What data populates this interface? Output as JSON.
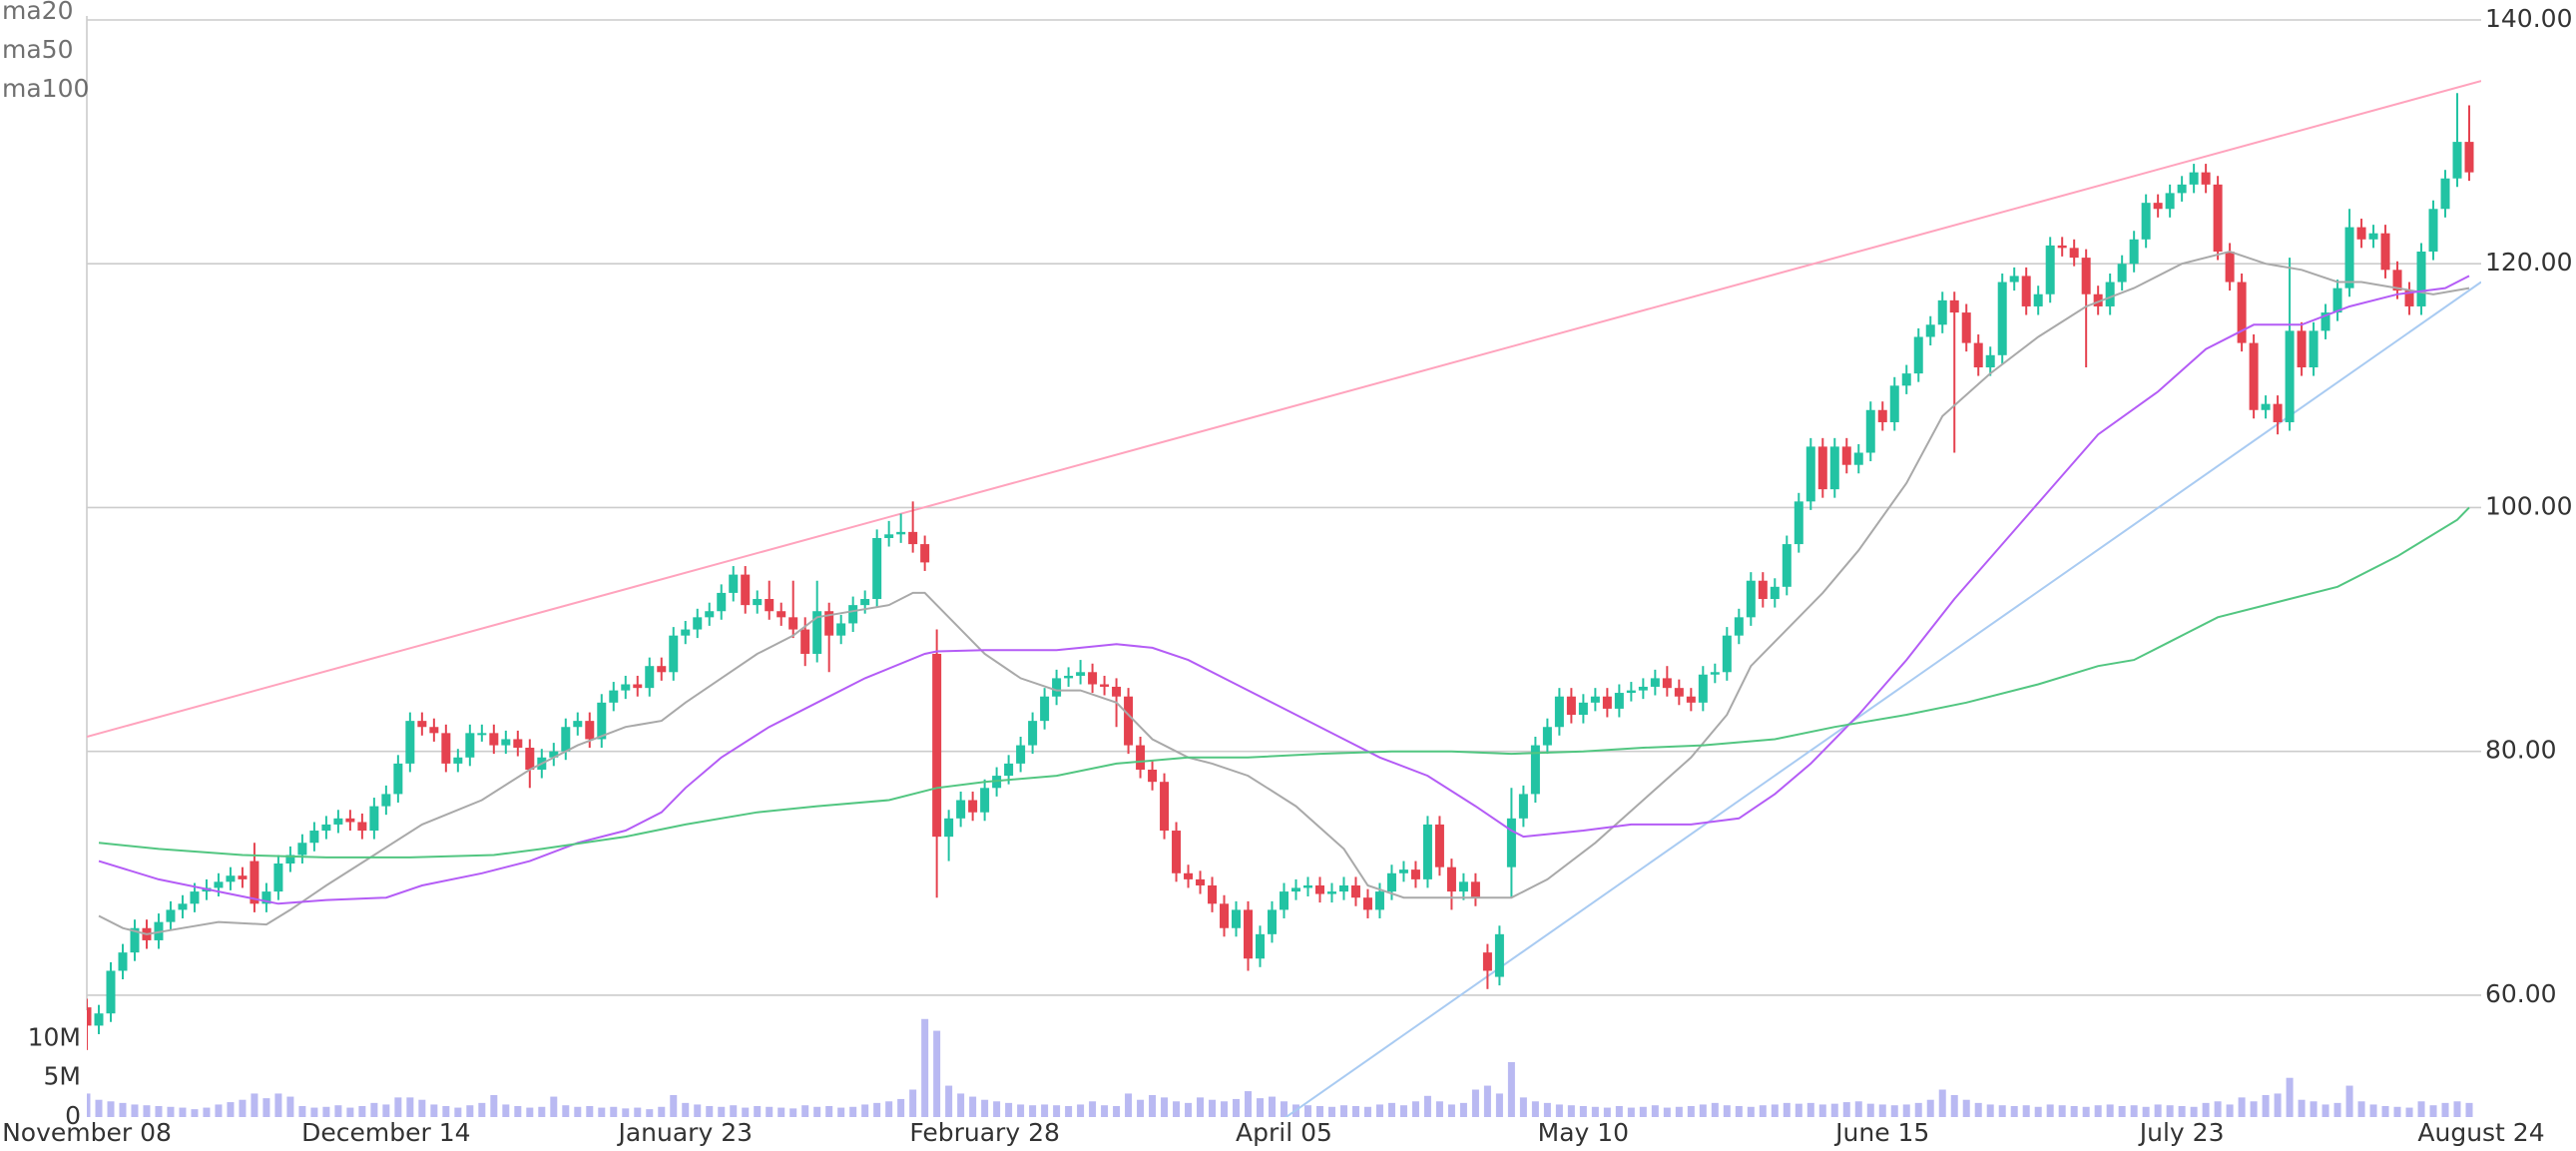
{
  "chart_data": {
    "type": "candlestick",
    "xlim": [
      0,
      200
    ],
    "xticks": [
      {
        "value": 0,
        "label": "November 08"
      },
      {
        "value": 25,
        "label": "December 14"
      },
      {
        "value": 50,
        "label": "January 23"
      },
      {
        "value": 75,
        "label": "February 28"
      },
      {
        "value": 100,
        "label": "April 05"
      },
      {
        "value": 125,
        "label": "May 10"
      },
      {
        "value": 150,
        "label": "June 15"
      },
      {
        "value": 175,
        "label": "July 23"
      },
      {
        "value": 200,
        "label": "August 24"
      }
    ],
    "ylim": [
      50,
      140
    ],
    "yticks": [
      {
        "value": 60,
        "label": "60.00"
      },
      {
        "value": 80,
        "label": "80.00"
      },
      {
        "value": 100,
        "label": "100.00"
      },
      {
        "value": 120,
        "label": "120.00"
      },
      {
        "value": 140,
        "label": "140.00"
      }
    ],
    "grid": true,
    "up_color": "#22c3a3",
    "down_color": "#e5424f",
    "open": [
      59,
      57.5,
      58.5,
      62,
      63.5,
      65.5,
      64.5,
      66,
      67,
      67.5,
      68.5,
      68.8,
      69.3,
      69.8,
      71,
      67.5,
      68.5,
      70.8,
      71.5,
      72.5,
      73.5,
      74,
      74.5,
      74.2,
      73.5,
      75.5,
      76.5,
      79,
      82.5,
      82,
      81.5,
      79,
      79.5,
      81.5,
      81.5,
      80.5,
      81,
      80.3,
      78.5,
      79.5,
      80,
      82,
      82.5,
      81,
      84,
      85,
      85.5,
      85.2,
      87,
      86.5,
      89.5,
      90,
      91,
      91.5,
      93,
      94.5,
      92,
      92.5,
      91.5,
      91,
      90,
      88,
      91.5,
      89.5,
      90.5,
      92,
      92.5,
      97.5,
      97.8,
      98,
      97,
      88,
      73,
      74.5,
      76,
      75,
      77,
      78,
      79,
      80.5,
      82.5,
      84.5,
      86,
      86.2,
      86.5,
      85.5,
      85.3,
      84.5,
      80.5,
      78.5,
      77.5,
      73.5,
      70,
      69.5,
      69,
      67.5,
      65.5,
      67,
      63,
      65,
      67,
      68.5,
      68.8,
      69,
      68.3,
      68.5,
      69,
      68,
      67,
      68.5,
      70,
      70.3,
      69.5,
      74,
      70.5,
      68.5,
      69.3,
      63.5,
      61.5,
      70.5,
      74.5,
      76.5,
      80.5,
      82,
      84.5,
      83,
      84,
      84.5,
      83.5,
      84.8,
      85,
      85.3,
      86,
      85.2,
      84.5,
      84,
      86.3,
      86.5,
      89.5,
      91,
      94,
      92.5,
      93.5,
      97,
      100.5,
      105,
      101.5,
      105,
      103.5,
      104.5,
      108,
      107,
      110,
      111,
      114,
      115,
      117,
      116,
      113.5,
      111.5,
      112.5,
      118.5,
      119,
      116.5,
      117.5,
      121.5,
      121.3,
      120.5,
      117.5,
      116.5,
      118.5,
      120,
      122,
      125,
      124.5,
      125.8,
      126.5,
      127.5,
      126.5,
      121,
      118.5,
      113.5,
      108,
      108.5,
      107,
      114.5,
      111.5,
      114.5,
      116,
      118,
      123,
      122,
      122.5,
      119.5,
      117.8,
      116.5,
      121,
      124.5,
      127,
      130
    ],
    "high": [
      59.7,
      59.2,
      62.7,
      64.2,
      66.2,
      66.2,
      66.7,
      67.7,
      68.2,
      69.2,
      69.5,
      70,
      70.5,
      70.5,
      72.5,
      69.2,
      71.5,
      72.2,
      73.2,
      74.2,
      74.7,
      75.2,
      75.2,
      74.9,
      76.2,
      77.2,
      79.7,
      83.2,
      83.2,
      82.7,
      82.2,
      80.2,
      82.2,
      82.2,
      82.2,
      81.7,
      81.7,
      81,
      80.2,
      80.7,
      82.7,
      83.2,
      83.2,
      84.7,
      85.7,
      86.2,
      86.2,
      87.7,
      87.7,
      90.2,
      90.7,
      91.7,
      92.2,
      93.7,
      95.2,
      95.2,
      93.2,
      94,
      92.2,
      94,
      91,
      94,
      92.2,
      91.2,
      92.7,
      93.2,
      98.2,
      98.9,
      99.5,
      100.5,
      97.7,
      90,
      75.2,
      76.7,
      76.7,
      77.7,
      78.7,
      79.7,
      81.2,
      83.2,
      85.2,
      86.7,
      86.9,
      87.5,
      87.2,
      86.2,
      86,
      85.2,
      81.2,
      79.2,
      78.2,
      74.2,
      70.7,
      70.2,
      69.7,
      68.2,
      67.7,
      67.7,
      65.7,
      67.7,
      69.2,
      69.5,
      69.7,
      69.7,
      69.2,
      69.7,
      69.7,
      68.7,
      69.2,
      70.7,
      71,
      71,
      74.7,
      74.7,
      71.2,
      70,
      70,
      64.2,
      65.7,
      77,
      77.2,
      81.2,
      82.7,
      85.2,
      85.2,
      84.7,
      85.2,
      85.2,
      85.5,
      85.7,
      86,
      86.7,
      87,
      85.9,
      85.2,
      87,
      87.2,
      90.2,
      91.7,
      94.7,
      94.7,
      94.2,
      97.7,
      101.2,
      105.7,
      105.7,
      105.7,
      105.7,
      105.2,
      108.7,
      108.7,
      110.7,
      111.7,
      114.7,
      115.7,
      117.7,
      117.7,
      116.7,
      114.2,
      113.2,
      119.2,
      119.7,
      119.7,
      118.2,
      122.2,
      122.2,
      122,
      121.2,
      118.2,
      119.2,
      120.7,
      122.7,
      125.7,
      125.7,
      126.5,
      127.2,
      128.2,
      128.2,
      127.2,
      121.7,
      119.2,
      114.2,
      109.2,
      109.2,
      120.5,
      115.2,
      115.2,
      116.7,
      118.7,
      124.5,
      123.7,
      123.2,
      123.2,
      120.2,
      118.5,
      121.7,
      125.2,
      127.7,
      134,
      133
    ],
    "low": [
      55.5,
      56.8,
      57.8,
      61.3,
      62.8,
      63.8,
      63.8,
      65.3,
      66.3,
      66.8,
      67.8,
      68.1,
      68.6,
      68.8,
      66.8,
      66.8,
      67.8,
      70.1,
      70.8,
      71.8,
      72.8,
      73.3,
      73.5,
      72.8,
      72.8,
      74.8,
      75.8,
      78.3,
      81.3,
      80.8,
      78.3,
      78.3,
      78.8,
      80.8,
      79.8,
      79.8,
      79.6,
      77,
      77.8,
      78.8,
      79.3,
      81.3,
      80.3,
      80.3,
      83.3,
      84.3,
      84.5,
      84.5,
      85.8,
      85.8,
      88.8,
      89.3,
      90.3,
      90.8,
      92.3,
      91.3,
      91.3,
      90.8,
      90.3,
      89.3,
      87,
      87.3,
      86.5,
      88.8,
      89.8,
      91.3,
      91.8,
      96.8,
      97.1,
      96.3,
      94.8,
      68,
      71,
      73.8,
      74.3,
      74.3,
      76.3,
      77.3,
      78.3,
      79.8,
      81.8,
      83.8,
      85.3,
      85.5,
      84.8,
      84.6,
      82,
      79.8,
      77.8,
      76.8,
      72.8,
      69.3,
      68.8,
      68.3,
      66.8,
      64.8,
      64.8,
      62,
      62.3,
      64.3,
      66.3,
      67.8,
      68.1,
      67.6,
      67.6,
      67.8,
      67.3,
      66.3,
      66.3,
      67.8,
      69.3,
      68.8,
      68.8,
      69.8,
      67,
      67.8,
      67.3,
      60.5,
      60.8,
      68,
      73.8,
      75.8,
      79.8,
      81.3,
      82.3,
      82.3,
      83.3,
      82.8,
      82.8,
      84.1,
      84.3,
      84.6,
      84.5,
      83.8,
      83.3,
      83.3,
      85.6,
      85.8,
      88.8,
      90.3,
      91.8,
      91.8,
      92.8,
      96.3,
      99.8,
      100.8,
      100.8,
      102.8,
      102.8,
      103.8,
      106.3,
      106.3,
      109.3,
      110.3,
      113.3,
      114.3,
      104.5,
      112.8,
      110.8,
      110.8,
      111.8,
      117.8,
      115.8,
      115.8,
      116.8,
      120.6,
      119.8,
      111.5,
      115.8,
      115.8,
      117.8,
      119.3,
      121.3,
      123.8,
      123.8,
      125.1,
      125.8,
      125.8,
      120.3,
      117.8,
      112.8,
      107.3,
      107.3,
      106,
      106.3,
      110.8,
      110.8,
      113.8,
      115.3,
      117.3,
      121.3,
      121.3,
      118.8,
      117.1,
      115.8,
      115.8,
      120.3,
      123.8,
      126.3,
      126.8
    ],
    "close": [
      57.5,
      58.5,
      62,
      63.5,
      65.5,
      64.5,
      66,
      67,
      67.5,
      68.5,
      68.8,
      69.3,
      69.8,
      69.5,
      67.5,
      68.5,
      70.8,
      71.5,
      72.5,
      73.5,
      74,
      74.5,
      74.2,
      73.5,
      75.5,
      76.5,
      79,
      82.5,
      82,
      81.5,
      79,
      79.5,
      81.5,
      81.5,
      80.5,
      81,
      80.3,
      78.5,
      79.5,
      80,
      82,
      82.5,
      81,
      84,
      85,
      85.5,
      85.2,
      87,
      86.5,
      89.5,
      90,
      91,
      91.5,
      93,
      94.5,
      92,
      92.5,
      91.5,
      91,
      90,
      88,
      91.5,
      89.5,
      90.5,
      92,
      92.5,
      97.5,
      97.8,
      98,
      97,
      95.5,
      73,
      74.5,
      76,
      75,
      77,
      78,
      79,
      80.5,
      82.5,
      84.5,
      86,
      86.2,
      86.5,
      85.5,
      85.3,
      84.5,
      80.5,
      78.5,
      77.5,
      73.5,
      70,
      69.5,
      69,
      67.5,
      65.5,
      67,
      63,
      65,
      67,
      68.5,
      68.8,
      69,
      68.3,
      68.5,
      69,
      68,
      67,
      68.5,
      70,
      70.3,
      69.5,
      74,
      70.5,
      68.5,
      69.3,
      68,
      62,
      65,
      74.5,
      76.5,
      80.5,
      82,
      84.5,
      83,
      84,
      84.5,
      83.5,
      84.8,
      85,
      85.3,
      86,
      85.2,
      84.5,
      84,
      86.3,
      86.5,
      89.5,
      91,
      94,
      92.5,
      93.5,
      97,
      100.5,
      105,
      101.5,
      105,
      103.5,
      104.5,
      108,
      107,
      110,
      111,
      114,
      115,
      117,
      116,
      113.5,
      111.5,
      112.5,
      118.5,
      119,
      116.5,
      117.5,
      121.5,
      121.3,
      120.5,
      117.5,
      116.5,
      118.5,
      120,
      122,
      125,
      124.5,
      125.8,
      126.5,
      127.5,
      126.5,
      121,
      118.5,
      113.5,
      108,
      108.5,
      107,
      114.5,
      111.5,
      114.5,
      116,
      118,
      123,
      122,
      122.5,
      119.5,
      117.8,
      116.5,
      121,
      124.5,
      127,
      130,
      127.5
    ],
    "volume": {
      "color": "#b9b9f2",
      "ylim": [
        0,
        14
      ],
      "yticks": [
        {
          "value": 10,
          "label": "10M"
        },
        {
          "value": 5,
          "label": "5M"
        },
        0
      ],
      "values": [
        3,
        2.2,
        2,
        1.8,
        1.6,
        1.5,
        1.4,
        1.3,
        1.2,
        1,
        1.2,
        1.6,
        1.9,
        2.2,
        3,
        2.4,
        3,
        2.6,
        1.4,
        1.2,
        1.3,
        1.5,
        1.2,
        1.4,
        1.8,
        1.6,
        2.5,
        2.5,
        2.2,
        1.6,
        1.4,
        1.2,
        1.5,
        1.8,
        2.8,
        1.6,
        1.4,
        1.2,
        1.3,
        2.6,
        1.5,
        1.3,
        1.4,
        1.2,
        1.3,
        1.1,
        1.2,
        1,
        1.3,
        2.8,
        1.8,
        1.6,
        1.4,
        1.3,
        1.5,
        1.2,
        1.4,
        1.3,
        1.2,
        1.1,
        1.5,
        1.3,
        1.4,
        1.2,
        1.3,
        1.6,
        1.8,
        2,
        2.3,
        3.5,
        12.5,
        11,
        4,
        3,
        2.6,
        2.2,
        2,
        1.8,
        1.6,
        1.5,
        1.6,
        1.5,
        1.4,
        1.6,
        2,
        1.5,
        1.4,
        3,
        2.2,
        2.8,
        2.5,
        2,
        1.8,
        2.5,
        2.2,
        2,
        2.3,
        3.3,
        2.4,
        2.6,
        2,
        1.6,
        1.5,
        1.4,
        1.3,
        1.5,
        1.4,
        1.3,
        1.6,
        1.8,
        1.5,
        2,
        2.7,
        2,
        1.6,
        1.8,
        3.5,
        4,
        3,
        7,
        2.5,
        2,
        1.8,
        1.6,
        1.5,
        1.4,
        1.3,
        1.2,
        1.4,
        1.2,
        1.3,
        1.5,
        1.2,
        1.3,
        1.4,
        1.6,
        1.8,
        1.5,
        1.4,
        1.3,
        1.5,
        1.6,
        1.8,
        1.7,
        1.8,
        1.6,
        1.7,
        1.9,
        2,
        1.7,
        1.6,
        1.5,
        1.6,
        1.8,
        2.2,
        3.5,
        2.8,
        2.2,
        1.8,
        1.6,
        1.5,
        1.4,
        1.5,
        1.3,
        1.6,
        1.5,
        1.4,
        1.3,
        1.5,
        1.6,
        1.4,
        1.5,
        1.3,
        1.6,
        1.5,
        1.4,
        1.3,
        1.8,
        2,
        1.6,
        2.5,
        2,
        2.8,
        3,
        5,
        2.2,
        2,
        1.6,
        1.8,
        4,
        2,
        1.6,
        1.4,
        1.3,
        1.2,
        2,
        1.5,
        1.8,
        2,
        1.8
      ]
    },
    "legend": "upper left",
    "series": [
      {
        "name": "ma20",
        "color": "#a9a9a9",
        "x": [
          1,
          3,
          5,
          8,
          11,
          15,
          17,
          20,
          24,
          28,
          33,
          37,
          41,
          45,
          48,
          50,
          53,
          56,
          59,
          61,
          64,
          67,
          69,
          70,
          72,
          75,
          78,
          81,
          83,
          86,
          89,
          92,
          94,
          97,
          101,
          105,
          107,
          110,
          114,
          116,
          119,
          122,
          126,
          130,
          134,
          137,
          139,
          142,
          145,
          148,
          152,
          155,
          159,
          163,
          167,
          171,
          175,
          179,
          182,
          185,
          188,
          190,
          193,
          196,
          199
        ],
        "values": [
          66.5,
          65.5,
          65,
          65.5,
          66,
          65.8,
          67,
          69,
          71.5,
          74,
          76,
          78.5,
          80.5,
          82,
          82.5,
          84,
          86,
          88,
          89.5,
          91,
          91.5,
          92,
          93,
          93,
          91,
          88,
          86,
          85,
          85,
          84,
          81,
          79.5,
          79,
          78,
          75.5,
          72,
          69,
          68,
          68,
          68,
          68,
          69.5,
          72.5,
          76,
          79.5,
          83,
          87,
          90,
          93,
          96.5,
          102,
          107.5,
          111,
          114,
          116.5,
          118,
          120,
          121,
          120,
          119.5,
          118.5,
          118.5,
          118,
          117.5,
          118
        ]
      },
      {
        "name": "ma50",
        "color": "#b45cf6",
        "x": [
          1,
          6,
          11,
          16,
          20,
          25,
          28,
          33,
          37,
          41,
          45,
          48,
          50,
          53,
          57,
          61,
          65,
          70,
          71,
          75,
          81,
          83,
          86,
          89,
          92,
          96,
          100,
          104,
          108,
          112,
          116,
          119,
          120,
          125,
          129,
          134,
          138,
          141,
          144,
          148,
          152,
          156,
          160,
          164,
          168,
          173,
          177,
          181,
          185,
          189,
          193,
          197,
          199
        ],
        "values": [
          71,
          69.5,
          68.5,
          67.5,
          67.8,
          68,
          69,
          70,
          71,
          72.5,
          73.5,
          75,
          77,
          79.5,
          82,
          84,
          86,
          88,
          88.2,
          88.3,
          88.3,
          88.5,
          88.8,
          88.5,
          87.5,
          85.5,
          83.5,
          81.5,
          79.5,
          78,
          75.5,
          73.5,
          73,
          73.5,
          74,
          74,
          74.5,
          76.5,
          79,
          83,
          87.5,
          92.5,
          97,
          101.5,
          106,
          109.5,
          113,
          115,
          115,
          116.5,
          117.5,
          118,
          119
        ]
      },
      {
        "name": "ma100",
        "color": "#52c681",
        "x": [
          1,
          6,
          13,
          20,
          27,
          34,
          38,
          45,
          50,
          56,
          61,
          67,
          71,
          75,
          81,
          86,
          92,
          97,
          103,
          109,
          114,
          119,
          125,
          130,
          135,
          141,
          146,
          152,
          157,
          163,
          168,
          171,
          174,
          178,
          182,
          188,
          193,
          198,
          199
        ],
        "values": [
          72.5,
          72,
          71.5,
          71.3,
          71.3,
          71.5,
          72,
          73,
          74,
          75,
          75.5,
          76,
          77,
          77.5,
          78,
          79,
          79.5,
          79.5,
          79.8,
          80,
          80,
          79.8,
          80,
          80.3,
          80.5,
          81,
          82,
          83,
          84,
          85.5,
          87,
          87.5,
          89,
          91,
          92,
          93.5,
          96,
          99,
          100
        ]
      }
    ],
    "trendlines": [
      {
        "color": "#ffa3bd",
        "x": [
          0,
          200
        ],
        "values": [
          81.2,
          135
        ]
      },
      {
        "color": "#a9cbf2",
        "x": [
          98,
          200
        ],
        "values": [
          48.5,
          118.5
        ]
      }
    ]
  }
}
